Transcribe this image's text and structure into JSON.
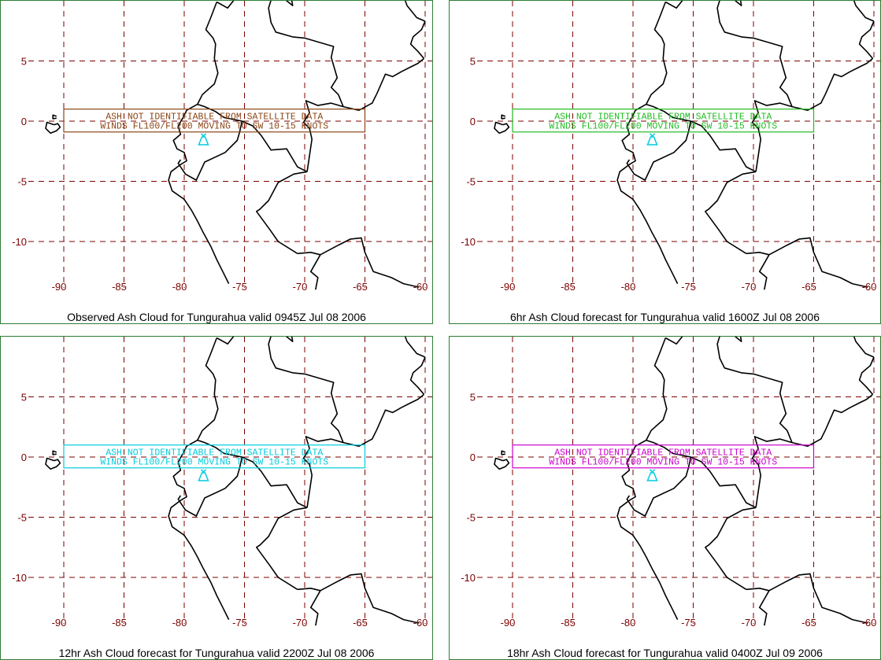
{
  "colors": {
    "grid": "#7b0000",
    "coast": "#000000",
    "volcano": "#00ccdd",
    "panel_border": "#2e7d32"
  },
  "axes": {
    "lon_ticks": [
      "-90",
      "-85",
      "-80",
      "-75",
      "-70",
      "-65",
      "-60"
    ],
    "lat_ticks": [
      "5",
      "0",
      "-5",
      "-10"
    ]
  },
  "volcano_icon": "volcano-triangle-icon",
  "panels": [
    {
      "caption": "Observed Ash Cloud for Tungurahua valid 0945Z Jul 08 2006",
      "advisory_line1": "ASH NOT IDENTIFIABLE FROM SATELLITE DATA",
      "advisory_line2": "WINDS FL100/FL200 MOVING TO SW 10-15 KNOTS",
      "color": "#8b4513"
    },
    {
      "caption": "6hr Ash Cloud forecast for Tungurahua valid 1600Z Jul 08 2006",
      "advisory_line1": "ASH NOT IDENTIFIABLE FROM SATELLITE DATA",
      "advisory_line2": "WINDS FL100/FL200 MOVING TO SW 10-15 KNOTS",
      "color": "#22bb22"
    },
    {
      "caption": "12hr Ash Cloud forecast for Tungurahua valid 2200Z Jul 08 2006",
      "advisory_line1": "ASH NOT IDENTIFIABLE FROM SATELLITE DATA",
      "advisory_line2": "WINDS FL100/FL200 MOVING TO SW 10-15 KNOTS",
      "color": "#00ccdd"
    },
    {
      "caption": "18hr Ash Cloud forecast for Tungurahua valid 0400Z Jul 09 2006",
      "advisory_line1": "ASH NOT IDENTIFIABLE FROM SATELLITE DATA",
      "advisory_line2": "WINDS FL100/FL200 MOVING TO SW 10-15 KNOTS",
      "color": "#cc00cc"
    }
  ]
}
